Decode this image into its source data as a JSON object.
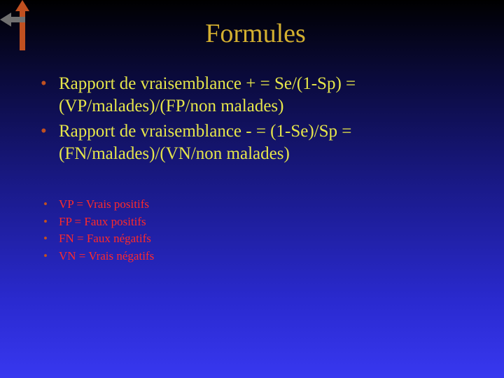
{
  "colors": {
    "title": "#d4b030",
    "main_text": "#e6e64a",
    "sub_text": "#ff2a2a",
    "bullet_main": "#c05020",
    "bullet_sub": "#c05020",
    "arrow_up": "#c05020",
    "arrow_left": "#707070"
  },
  "title": "Formules",
  "main_bullets": [
    "Rapport de vraisemblance + = Se/(1-Sp) = (VP/malades)/(FP/non malades)",
    "Rapport de vraisemblance - = (1-Se)/Sp = (FN/malades)/(VN/non malades)"
  ],
  "sub_bullets": [
    "VP = Vrais positifs",
    "FP = Faux positifs",
    "FN = Faux négatifs",
    "VN = Vrais négatifs"
  ],
  "typography": {
    "title_fontsize": 38,
    "main_fontsize": 25,
    "sub_fontsize": 17,
    "font_family": "Times New Roman"
  }
}
